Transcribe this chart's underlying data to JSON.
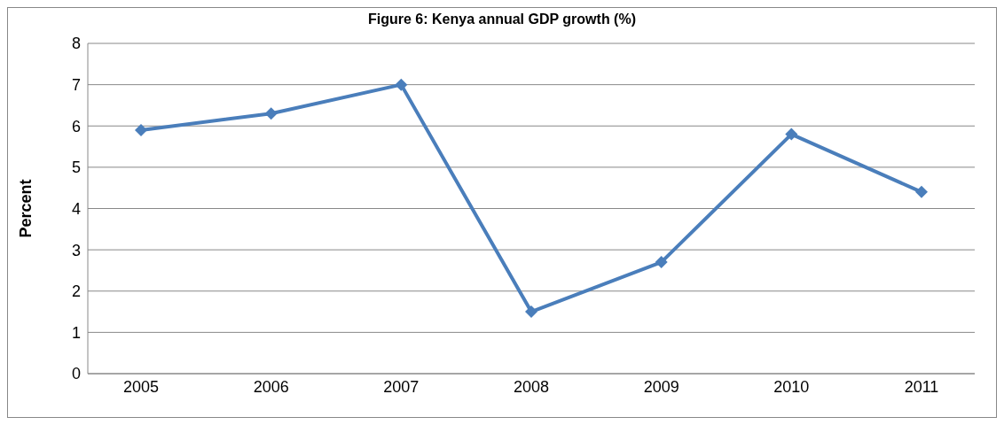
{
  "chart_data": {
    "type": "line",
    "title": "Figure 6: Kenya annual GDP growth (%)",
    "ylabel": "Percent",
    "categories": [
      "2005",
      "2006",
      "2007",
      "2008",
      "2009",
      "2010",
      "2011"
    ],
    "series": [
      {
        "color": "#4a7ebb",
        "values": [
          5.9,
          6.3,
          7.0,
          1.5,
          2.7,
          5.8,
          4.4
        ]
      }
    ],
    "ylim": [
      0,
      8
    ],
    "yticks": [
      0,
      1,
      2,
      3,
      4,
      5,
      6,
      7,
      8
    ],
    "grid": "y",
    "legend": false,
    "marker": "diamond",
    "line_style": "solid"
  }
}
